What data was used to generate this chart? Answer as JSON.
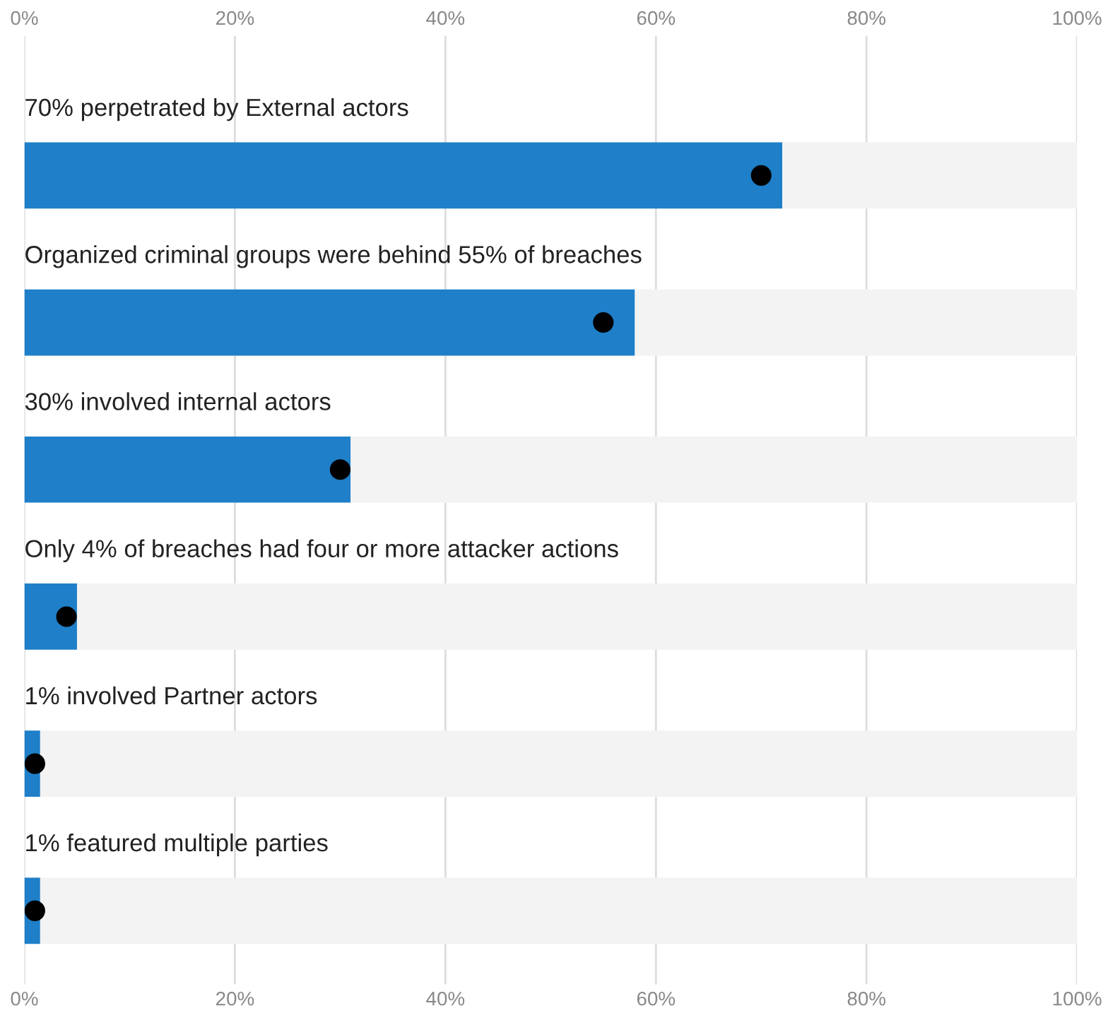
{
  "chart_data": {
    "type": "bar",
    "orientation": "horizontal",
    "stacked": true,
    "categories": [
      "70% perpetrated by External actors",
      "Organized criminal groups were behind 55% of breaches",
      "30% involved internal actors",
      "Only 4% of breaches had four or more attacker actions",
      "1% involved Partner actors",
      "1% featured multiple parties"
    ],
    "series": [
      {
        "color": "#1f7fc8",
        "values": [
          72,
          58,
          31,
          5,
          1.5,
          1.5
        ]
      },
      {
        "color": "#f3f3f3",
        "values": [
          28,
          42,
          69,
          95,
          98.5,
          98.5
        ]
      },
      {
        "type": "scatter",
        "color": "#000000",
        "values": [
          70,
          55,
          30,
          4,
          1,
          1
        ]
      }
    ],
    "xlim": [
      0,
      100
    ],
    "xticks": [
      {
        "value": 0,
        "label": "0%"
      },
      {
        "value": 20,
        "label": "20%"
      },
      {
        "value": 40,
        "label": "40%"
      },
      {
        "value": 60,
        "label": "60%"
      },
      {
        "value": 80,
        "label": "80%"
      },
      {
        "value": 100,
        "label": "100%"
      }
    ],
    "x2lim": [
      0,
      100
    ],
    "x2ticks": [
      {
        "value": 0,
        "label": "0%"
      },
      {
        "value": 20,
        "label": "20%"
      },
      {
        "value": 40,
        "label": "40%"
      },
      {
        "value": 60,
        "label": "60%"
      },
      {
        "value": 80,
        "label": "80%"
      },
      {
        "value": 100,
        "label": "100%"
      }
    ],
    "grid": "x",
    "marker": "circle"
  }
}
